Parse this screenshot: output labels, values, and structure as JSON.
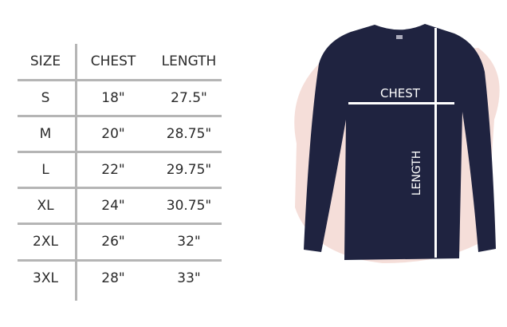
{
  "table": {
    "headers": [
      "SIZE",
      "CHEST",
      "LENGTH"
    ],
    "rows": [
      [
        "S",
        "18\"",
        "27.5\""
      ],
      [
        "M",
        "20\"",
        "28.75\""
      ],
      [
        "L",
        "22\"",
        "29.75\""
      ],
      [
        "XL",
        "24\"",
        "30.75\""
      ],
      [
        "2XL",
        "26\"",
        "32\""
      ],
      [
        "3XL",
        "28\"",
        "33\""
      ]
    ]
  },
  "diagram": {
    "chest_label": "CHEST",
    "length_label": "LENGTH",
    "shirt_color": "#1f2340",
    "splash_color": "#f2d6d0"
  }
}
